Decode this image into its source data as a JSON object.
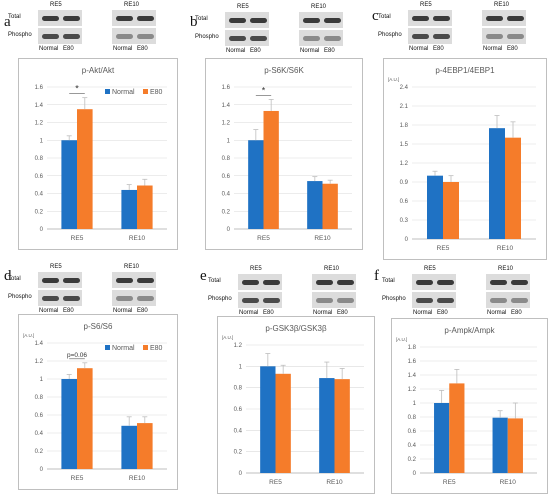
{
  "colors": {
    "normal": "#1f72c4",
    "e80": "#f57c2a",
    "grid": "#d9d9d9",
    "axis": "#b0b0b0",
    "text": "#595959"
  },
  "blot": {
    "groups": [
      "RE5",
      "RE10"
    ],
    "rows": [
      "Total",
      "Phospho"
    ],
    "lanes": [
      "Normal",
      "E80"
    ]
  },
  "panels": [
    {
      "letter": "a"
    },
    {
      "letter": "b"
    },
    {
      "letter": "c"
    },
    {
      "letter": "d"
    },
    {
      "letter": "e"
    },
    {
      "letter": "f"
    }
  ],
  "chart_data": [
    {
      "type": "bar",
      "title": "p-Akt/Akt",
      "unit": "",
      "categories": [
        "RE5",
        "RE10"
      ],
      "series": [
        {
          "name": "Normal",
          "values": [
            1.0,
            0.44
          ],
          "err": [
            0.05,
            0.06
          ]
        },
        {
          "name": "E80",
          "values": [
            1.35,
            0.49
          ],
          "err": [
            0.13,
            0.07
          ]
        }
      ],
      "ylim": [
        0,
        1.6
      ],
      "yticks": [
        "0",
        "0.2",
        "0.4",
        "0.6",
        "0.8",
        "1",
        "1.2",
        "1.4",
        "1.6"
      ],
      "legend": "top-right",
      "annotation": {
        "text": "*",
        "category": "RE5"
      }
    },
    {
      "type": "bar",
      "title": "p-S6K/S6K",
      "unit": "",
      "categories": [
        "RE5",
        "RE10"
      ],
      "series": [
        {
          "name": "Normal",
          "values": [
            1.0,
            0.54
          ],
          "err": [
            0.12,
            0.05
          ]
        },
        {
          "name": "E80",
          "values": [
            1.33,
            0.51
          ],
          "err": [
            0.13,
            0.04
          ]
        }
      ],
      "ylim": [
        0,
        1.6
      ],
      "yticks": [
        "0",
        "0.2",
        "0.4",
        "0.6",
        "0.8",
        "1",
        "1.2",
        "1.4",
        "1.6"
      ],
      "legend": "",
      "annotation": {
        "text": "*",
        "category": "RE5"
      }
    },
    {
      "type": "bar",
      "title": "p-4EBP1/4EBP1",
      "unit": "[A.U.]",
      "categories": [
        "RE5",
        "RE10"
      ],
      "series": [
        {
          "name": "Normal",
          "values": [
            1.0,
            1.75
          ],
          "err": [
            0.07,
            0.2
          ]
        },
        {
          "name": "E80",
          "values": [
            0.9,
            1.6
          ],
          "err": [
            0.1,
            0.25
          ]
        }
      ],
      "ylim": [
        0,
        2.4
      ],
      "yticks": [
        "0",
        "0.3",
        "0.6",
        "0.9",
        "1.2",
        "1.5",
        "1.8",
        "2.1",
        "2.4"
      ],
      "legend": "",
      "annotation": null
    },
    {
      "type": "bar",
      "title": "p-S6/S6",
      "unit": "[A.U.]",
      "categories": [
        "RE5",
        "RE10"
      ],
      "series": [
        {
          "name": "Normal",
          "values": [
            1.0,
            0.48
          ],
          "err": [
            0.05,
            0.1
          ]
        },
        {
          "name": "E80",
          "values": [
            1.12,
            0.51
          ],
          "err": [
            0.06,
            0.07
          ]
        }
      ],
      "ylim": [
        0,
        1.4
      ],
      "yticks": [
        "0",
        "0.2",
        "0.4",
        "0.6",
        "0.8",
        "1",
        "1.2",
        "1.4"
      ],
      "legend": "top-right",
      "annotation": {
        "text": "p=0.06",
        "category": "RE5"
      }
    },
    {
      "type": "bar",
      "title": "p-GSK3β/GSK3β",
      "unit": "[A.U.]",
      "categories": [
        "RE5",
        "RE10"
      ],
      "series": [
        {
          "name": "Normal",
          "values": [
            1.0,
            0.89
          ],
          "err": [
            0.12,
            0.15
          ]
        },
        {
          "name": "E80",
          "values": [
            0.93,
            0.88
          ],
          "err": [
            0.08,
            0.1
          ]
        }
      ],
      "ylim": [
        0,
        1.2
      ],
      "yticks": [
        "0",
        "0.2",
        "0.4",
        "0.6",
        "0.8",
        "1",
        "1.2"
      ],
      "legend": "",
      "annotation": null
    },
    {
      "type": "bar",
      "title": "p-Ampk/Ampk",
      "unit": "[A.U.]",
      "categories": [
        "RE5",
        "RE10"
      ],
      "series": [
        {
          "name": "Normal",
          "values": [
            1.0,
            0.79
          ],
          "err": [
            0.18,
            0.1
          ]
        },
        {
          "name": "E80",
          "values": [
            1.28,
            0.78
          ],
          "err": [
            0.2,
            0.22
          ]
        }
      ],
      "ylim": [
        0,
        1.8
      ],
      "yticks": [
        "0",
        "0.2",
        "0.4",
        "0.6",
        "0.8",
        "1",
        "1.2",
        "1.4",
        "1.6",
        "1.8"
      ],
      "legend": "",
      "annotation": null
    }
  ]
}
